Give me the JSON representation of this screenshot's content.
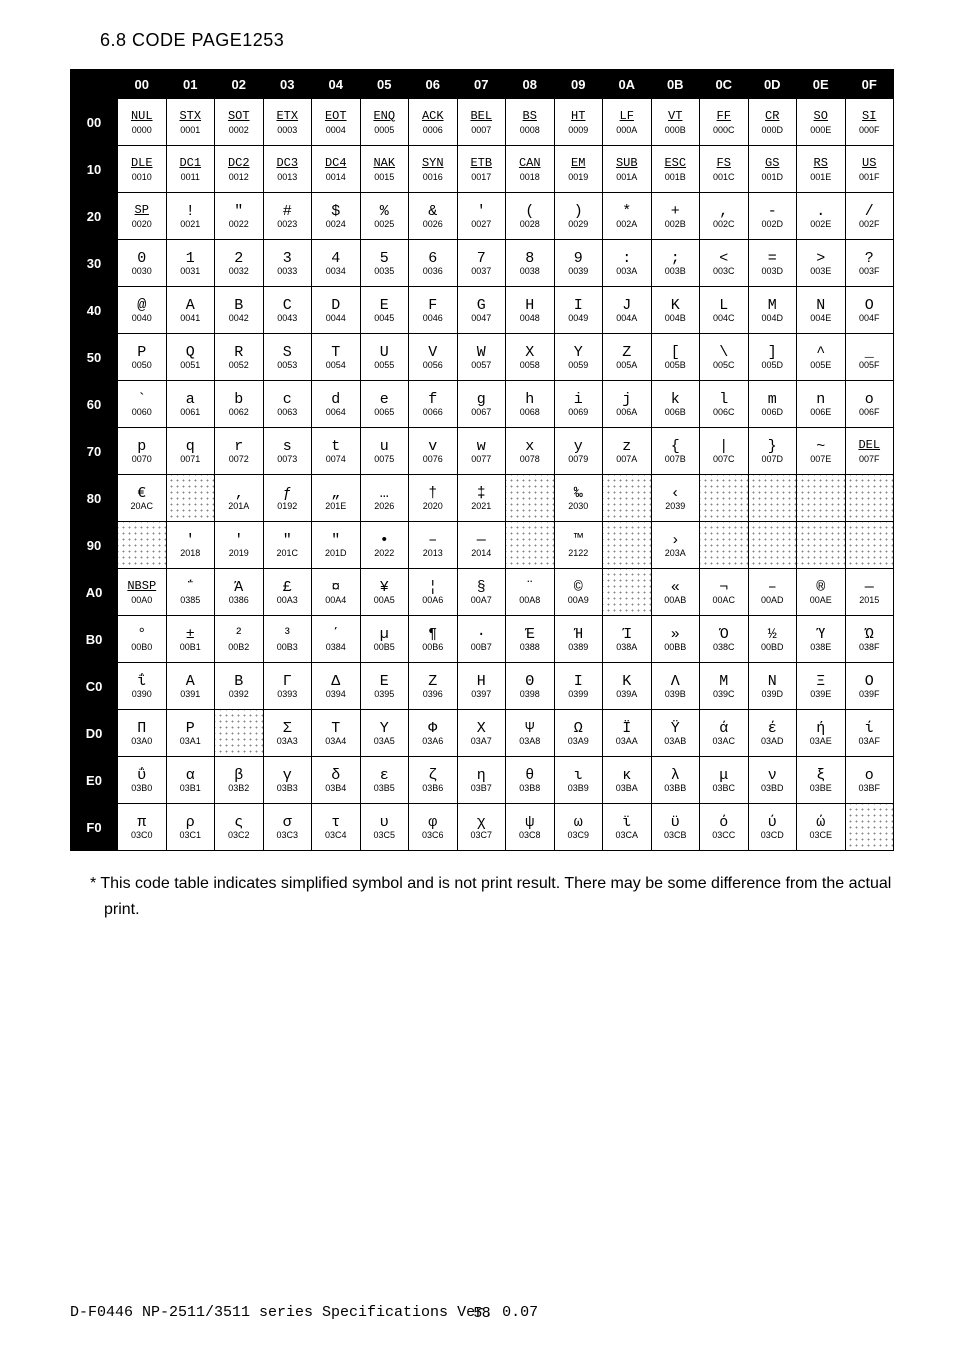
{
  "section_title": "6.8 CODE PAGE1253",
  "note": "* This code table indicates simplified symbol and is not print result. There may be some difference from the actual print.",
  "footer_left": "D-F0446 NP-2511/3511 series Specifications Ver. 0.07",
  "footer_page": "58",
  "col_headers": [
    "00",
    "01",
    "02",
    "03",
    "04",
    "05",
    "06",
    "07",
    "08",
    "09",
    "0A",
    "0B",
    "0C",
    "0D",
    "0E",
    "0F"
  ],
  "row_headers": [
    "00",
    "10",
    "20",
    "30",
    "40",
    "50",
    "60",
    "70",
    "80",
    "90",
    "A0",
    "B0",
    "C0",
    "D0",
    "E0",
    "F0"
  ],
  "codepage_rows": [
    [
      {
        "g": "NUL",
        "u": "0000",
        "c": true
      },
      {
        "g": "STX",
        "u": "0001",
        "c": true
      },
      {
        "g": "SOT",
        "u": "0002",
        "c": true
      },
      {
        "g": "ETX",
        "u": "0003",
        "c": true
      },
      {
        "g": "EOT",
        "u": "0004",
        "c": true
      },
      {
        "g": "ENQ",
        "u": "0005",
        "c": true
      },
      {
        "g": "ACK",
        "u": "0006",
        "c": true
      },
      {
        "g": "BEL",
        "u": "0007",
        "c": true
      },
      {
        "g": "BS",
        "u": "0008",
        "c": true
      },
      {
        "g": "HT",
        "u": "0009",
        "c": true
      },
      {
        "g": "LF",
        "u": "000A",
        "c": true
      },
      {
        "g": "VT",
        "u": "000B",
        "c": true
      },
      {
        "g": "FF",
        "u": "000C",
        "c": true
      },
      {
        "g": "CR",
        "u": "000D",
        "c": true
      },
      {
        "g": "SO",
        "u": "000E",
        "c": true
      },
      {
        "g": "SI",
        "u": "000F",
        "c": true
      }
    ],
    [
      {
        "g": "DLE",
        "u": "0010",
        "c": true
      },
      {
        "g": "DC1",
        "u": "0011",
        "c": true
      },
      {
        "g": "DC2",
        "u": "0012",
        "c": true
      },
      {
        "g": "DC3",
        "u": "0013",
        "c": true
      },
      {
        "g": "DC4",
        "u": "0014",
        "c": true
      },
      {
        "g": "NAK",
        "u": "0015",
        "c": true
      },
      {
        "g": "SYN",
        "u": "0016",
        "c": true
      },
      {
        "g": "ETB",
        "u": "0017",
        "c": true
      },
      {
        "g": "CAN",
        "u": "0018",
        "c": true
      },
      {
        "g": "EM",
        "u": "0019",
        "c": true
      },
      {
        "g": "SUB",
        "u": "001A",
        "c": true
      },
      {
        "g": "ESC",
        "u": "001B",
        "c": true
      },
      {
        "g": "FS",
        "u": "001C",
        "c": true
      },
      {
        "g": "GS",
        "u": "001D",
        "c": true
      },
      {
        "g": "RS",
        "u": "001E",
        "c": true
      },
      {
        "g": "US",
        "u": "001F",
        "c": true
      }
    ],
    [
      {
        "g": "SP",
        "u": "0020",
        "c": true
      },
      {
        "g": "!",
        "u": "0021"
      },
      {
        "g": "\"",
        "u": "0022"
      },
      {
        "g": "#",
        "u": "0023"
      },
      {
        "g": "$",
        "u": "0024"
      },
      {
        "g": "%",
        "u": "0025"
      },
      {
        "g": "&",
        "u": "0026"
      },
      {
        "g": "'",
        "u": "0027"
      },
      {
        "g": "(",
        "u": "0028"
      },
      {
        "g": ")",
        "u": "0029"
      },
      {
        "g": "*",
        "u": "002A"
      },
      {
        "g": "+",
        "u": "002B"
      },
      {
        "g": ",",
        "u": "002C"
      },
      {
        "g": "-",
        "u": "002D"
      },
      {
        "g": ".",
        "u": "002E"
      },
      {
        "g": "/",
        "u": "002F"
      }
    ],
    [
      {
        "g": "0",
        "u": "0030"
      },
      {
        "g": "1",
        "u": "0031"
      },
      {
        "g": "2",
        "u": "0032"
      },
      {
        "g": "3",
        "u": "0033"
      },
      {
        "g": "4",
        "u": "0034"
      },
      {
        "g": "5",
        "u": "0035"
      },
      {
        "g": "6",
        "u": "0036"
      },
      {
        "g": "7",
        "u": "0037"
      },
      {
        "g": "8",
        "u": "0038"
      },
      {
        "g": "9",
        "u": "0039"
      },
      {
        "g": ":",
        "u": "003A"
      },
      {
        "g": ";",
        "u": "003B"
      },
      {
        "g": "<",
        "u": "003C"
      },
      {
        "g": "=",
        "u": "003D"
      },
      {
        "g": ">",
        "u": "003E"
      },
      {
        "g": "?",
        "u": "003F"
      }
    ],
    [
      {
        "g": "@",
        "u": "0040"
      },
      {
        "g": "A",
        "u": "0041"
      },
      {
        "g": "B",
        "u": "0042"
      },
      {
        "g": "C",
        "u": "0043"
      },
      {
        "g": "D",
        "u": "0044"
      },
      {
        "g": "E",
        "u": "0045"
      },
      {
        "g": "F",
        "u": "0046"
      },
      {
        "g": "G",
        "u": "0047"
      },
      {
        "g": "H",
        "u": "0048"
      },
      {
        "g": "I",
        "u": "0049"
      },
      {
        "g": "J",
        "u": "004A"
      },
      {
        "g": "K",
        "u": "004B"
      },
      {
        "g": "L",
        "u": "004C"
      },
      {
        "g": "M",
        "u": "004D"
      },
      {
        "g": "N",
        "u": "004E"
      },
      {
        "g": "O",
        "u": "004F"
      }
    ],
    [
      {
        "g": "P",
        "u": "0050"
      },
      {
        "g": "Q",
        "u": "0051"
      },
      {
        "g": "R",
        "u": "0052"
      },
      {
        "g": "S",
        "u": "0053"
      },
      {
        "g": "T",
        "u": "0054"
      },
      {
        "g": "U",
        "u": "0055"
      },
      {
        "g": "V",
        "u": "0056"
      },
      {
        "g": "W",
        "u": "0057"
      },
      {
        "g": "X",
        "u": "0058"
      },
      {
        "g": "Y",
        "u": "0059"
      },
      {
        "g": "Z",
        "u": "005A"
      },
      {
        "g": "[",
        "u": "005B"
      },
      {
        "g": "\\",
        "u": "005C"
      },
      {
        "g": "]",
        "u": "005D"
      },
      {
        "g": "^",
        "u": "005E"
      },
      {
        "g": "_",
        "u": "005F"
      }
    ],
    [
      {
        "g": "`",
        "u": "0060"
      },
      {
        "g": "a",
        "u": "0061"
      },
      {
        "g": "b",
        "u": "0062"
      },
      {
        "g": "c",
        "u": "0063"
      },
      {
        "g": "d",
        "u": "0064"
      },
      {
        "g": "e",
        "u": "0065"
      },
      {
        "g": "f",
        "u": "0066"
      },
      {
        "g": "g",
        "u": "0067"
      },
      {
        "g": "h",
        "u": "0068"
      },
      {
        "g": "i",
        "u": "0069"
      },
      {
        "g": "j",
        "u": "006A"
      },
      {
        "g": "k",
        "u": "006B"
      },
      {
        "g": "l",
        "u": "006C"
      },
      {
        "g": "m",
        "u": "006D"
      },
      {
        "g": "n",
        "u": "006E"
      },
      {
        "g": "o",
        "u": "006F"
      }
    ],
    [
      {
        "g": "p",
        "u": "0070"
      },
      {
        "g": "q",
        "u": "0071"
      },
      {
        "g": "r",
        "u": "0072"
      },
      {
        "g": "s",
        "u": "0073"
      },
      {
        "g": "t",
        "u": "0074"
      },
      {
        "g": "u",
        "u": "0075"
      },
      {
        "g": "v",
        "u": "0076"
      },
      {
        "g": "w",
        "u": "0077"
      },
      {
        "g": "x",
        "u": "0078"
      },
      {
        "g": "y",
        "u": "0079"
      },
      {
        "g": "z",
        "u": "007A"
      },
      {
        "g": "{",
        "u": "007B"
      },
      {
        "g": "|",
        "u": "007C"
      },
      {
        "g": "}",
        "u": "007D"
      },
      {
        "g": "~",
        "u": "007E"
      },
      {
        "g": "DEL",
        "u": "007F",
        "c": true
      }
    ],
    [
      {
        "g": "€",
        "u": "20AC"
      },
      {
        "undef": true
      },
      {
        "g": "‚",
        "u": "201A"
      },
      {
        "g": "ƒ",
        "u": "0192"
      },
      {
        "g": "„",
        "u": "201E"
      },
      {
        "g": "…",
        "u": "2026"
      },
      {
        "g": "†",
        "u": "2020"
      },
      {
        "g": "‡",
        "u": "2021"
      },
      {
        "undef": true
      },
      {
        "g": "‰",
        "u": "2030"
      },
      {
        "undef": true
      },
      {
        "g": "‹",
        "u": "2039"
      },
      {
        "undef": true
      },
      {
        "undef": true
      },
      {
        "undef": true
      },
      {
        "undef": true
      }
    ],
    [
      {
        "undef": true
      },
      {
        "g": "'",
        "u": "2018"
      },
      {
        "g": "'",
        "u": "2019"
      },
      {
        "g": "\"",
        "u": "201C"
      },
      {
        "g": "\"",
        "u": "201D"
      },
      {
        "g": "•",
        "u": "2022"
      },
      {
        "g": "–",
        "u": "2013"
      },
      {
        "g": "—",
        "u": "2014"
      },
      {
        "undef": true
      },
      {
        "g": "™",
        "u": "2122"
      },
      {
        "undef": true
      },
      {
        "g": "›",
        "u": "203A"
      },
      {
        "undef": true
      },
      {
        "undef": true
      },
      {
        "undef": true
      },
      {
        "undef": true
      }
    ],
    [
      {
        "g": "NBSP",
        "u": "00A0",
        "c": true
      },
      {
        "g": "΅",
        "u": "0385"
      },
      {
        "g": "Ά",
        "u": "0386"
      },
      {
        "g": "£",
        "u": "00A3"
      },
      {
        "g": "¤",
        "u": "00A4"
      },
      {
        "g": "¥",
        "u": "00A5"
      },
      {
        "g": "¦",
        "u": "00A6"
      },
      {
        "g": "§",
        "u": "00A7"
      },
      {
        "g": "¨",
        "u": "00A8"
      },
      {
        "g": "©",
        "u": "00A9"
      },
      {
        "undef": true
      },
      {
        "g": "«",
        "u": "00AB"
      },
      {
        "g": "¬",
        "u": "00AC"
      },
      {
        "g": "­–",
        "u": "00AD"
      },
      {
        "g": "®",
        "u": "00AE"
      },
      {
        "g": "―",
        "u": "2015"
      }
    ],
    [
      {
        "g": "°",
        "u": "00B0"
      },
      {
        "g": "±",
        "u": "00B1"
      },
      {
        "g": "²",
        "u": "00B2"
      },
      {
        "g": "³",
        "u": "00B3"
      },
      {
        "g": "΄",
        "u": "0384"
      },
      {
        "g": "µ",
        "u": "00B5"
      },
      {
        "g": "¶",
        "u": "00B6"
      },
      {
        "g": "·",
        "u": "00B7"
      },
      {
        "g": "Έ",
        "u": "0388"
      },
      {
        "g": "Ή",
        "u": "0389"
      },
      {
        "g": "Ί",
        "u": "038A"
      },
      {
        "g": "»",
        "u": "00BB"
      },
      {
        "g": "Ό",
        "u": "038C"
      },
      {
        "g": "½",
        "u": "00BD"
      },
      {
        "g": "Ύ",
        "u": "038E"
      },
      {
        "g": "Ώ",
        "u": "038F"
      }
    ],
    [
      {
        "g": "ΐ",
        "u": "0390"
      },
      {
        "g": "Α",
        "u": "0391"
      },
      {
        "g": "Β",
        "u": "0392"
      },
      {
        "g": "Γ",
        "u": "0393"
      },
      {
        "g": "Δ",
        "u": "0394"
      },
      {
        "g": "Ε",
        "u": "0395"
      },
      {
        "g": "Ζ",
        "u": "0396"
      },
      {
        "g": "Η",
        "u": "0397"
      },
      {
        "g": "Θ",
        "u": "0398"
      },
      {
        "g": "Ι",
        "u": "0399"
      },
      {
        "g": "Κ",
        "u": "039A"
      },
      {
        "g": "Λ",
        "u": "039B"
      },
      {
        "g": "Μ",
        "u": "039C"
      },
      {
        "g": "Ν",
        "u": "039D"
      },
      {
        "g": "Ξ",
        "u": "039E"
      },
      {
        "g": "Ο",
        "u": "039F"
      }
    ],
    [
      {
        "g": "Π",
        "u": "03A0"
      },
      {
        "g": "Ρ",
        "u": "03A1"
      },
      {
        "undef": true
      },
      {
        "g": "Σ",
        "u": "03A3"
      },
      {
        "g": "Τ",
        "u": "03A4"
      },
      {
        "g": "Υ",
        "u": "03A5"
      },
      {
        "g": "Φ",
        "u": "03A6"
      },
      {
        "g": "Χ",
        "u": "03A7"
      },
      {
        "g": "Ψ",
        "u": "03A8"
      },
      {
        "g": "Ω",
        "u": "03A9"
      },
      {
        "g": "Ϊ",
        "u": "03AA"
      },
      {
        "g": "Ϋ",
        "u": "03AB"
      },
      {
        "g": "ά",
        "u": "03AC"
      },
      {
        "g": "έ",
        "u": "03AD"
      },
      {
        "g": "ή",
        "u": "03AE"
      },
      {
        "g": "ί",
        "u": "03AF"
      }
    ],
    [
      {
        "g": "ΰ",
        "u": "03B0"
      },
      {
        "g": "α",
        "u": "03B1"
      },
      {
        "g": "β",
        "u": "03B2"
      },
      {
        "g": "γ",
        "u": "03B3"
      },
      {
        "g": "δ",
        "u": "03B4"
      },
      {
        "g": "ε",
        "u": "03B5"
      },
      {
        "g": "ζ",
        "u": "03B6"
      },
      {
        "g": "η",
        "u": "03B7"
      },
      {
        "g": "θ",
        "u": "03B8"
      },
      {
        "g": "ι",
        "u": "03B9"
      },
      {
        "g": "κ",
        "u": "03BA"
      },
      {
        "g": "λ",
        "u": "03BB"
      },
      {
        "g": "μ",
        "u": "03BC"
      },
      {
        "g": "ν",
        "u": "03BD"
      },
      {
        "g": "ξ",
        "u": "03BE"
      },
      {
        "g": "ο",
        "u": "03BF"
      }
    ],
    [
      {
        "g": "π",
        "u": "03C0"
      },
      {
        "g": "ρ",
        "u": "03C1"
      },
      {
        "g": "ς",
        "u": "03C2"
      },
      {
        "g": "σ",
        "u": "03C3"
      },
      {
        "g": "τ",
        "u": "03C4"
      },
      {
        "g": "υ",
        "u": "03C5"
      },
      {
        "g": "φ",
        "u": "03C6"
      },
      {
        "g": "χ",
        "u": "03C7"
      },
      {
        "g": "ψ",
        "u": "03C8"
      },
      {
        "g": "ω",
        "u": "03C9"
      },
      {
        "g": "ϊ",
        "u": "03CA"
      },
      {
        "g": "ϋ",
        "u": "03CB"
      },
      {
        "g": "ό",
        "u": "03CC"
      },
      {
        "g": "ύ",
        "u": "03CD"
      },
      {
        "g": "ώ",
        "u": "03CE"
      },
      {
        "undef": true
      }
    ]
  ]
}
